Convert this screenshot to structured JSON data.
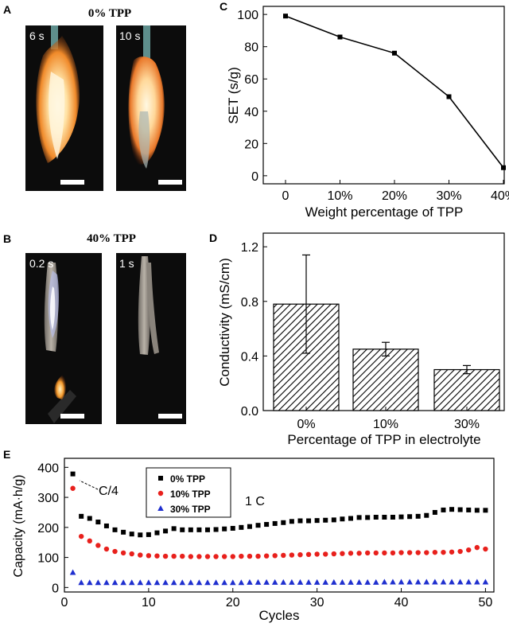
{
  "panel_labels": {
    "a": "A",
    "b": "B",
    "c": "C",
    "d": "D",
    "e": "E"
  },
  "photos": {
    "top_title": "0% TPP",
    "top_left_time": "6 s",
    "top_right_time": "10 s",
    "bottom_title": "40% TPP",
    "bottom_left_time": "0.2 s",
    "bottom_right_time": "1 s"
  },
  "colors": {
    "black_series": "#000000",
    "red_series": "#e8201c",
    "blue_series": "#1f2fcf",
    "photo_bg": "#0c0c0c"
  },
  "chart_data": [
    {
      "id": "C",
      "type": "line",
      "categories": [
        "0",
        "10%",
        "20%",
        "30%",
        "40%"
      ],
      "values": [
        99,
        86,
        76,
        49,
        5
      ],
      "ylabel": "SET (s/g)",
      "xlabel": "Weight percentage of TPP",
      "ylim": [
        -5,
        105
      ],
      "yticks": [
        0,
        20,
        40,
        60,
        80,
        100
      ]
    },
    {
      "id": "D",
      "type": "bar",
      "categories": [
        "0%",
        "10%",
        "30%"
      ],
      "values": [
        0.78,
        0.45,
        0.3
      ],
      "errors": [
        0.36,
        0.05,
        0.03
      ],
      "ylabel": "Conductivity (mS/cm)",
      "xlabel": "Percentage of TPP in electrolyte",
      "ylim": [
        0,
        1.3
      ],
      "yticks": [
        "0.0",
        "0.4",
        "0.8",
        "1.2"
      ]
    },
    {
      "id": "E",
      "type": "scatter",
      "xlabel": "Cycles",
      "ylabel": "Capacity (mA·h/g)",
      "xlim": [
        0,
        51
      ],
      "ylim": [
        -15,
        430
      ],
      "xticks": [
        0,
        10,
        20,
        30,
        40,
        50
      ],
      "yticks": [
        0,
        100,
        200,
        300,
        400
      ],
      "annotations": {
        "c4": "C/4",
        "one_c": "1 C"
      },
      "series": [
        {
          "name": "0% TPP",
          "marker": "square",
          "color": "#000000",
          "x": [
            1,
            2,
            3,
            4,
            5,
            6,
            7,
            8,
            9,
            10,
            11,
            12,
            13,
            14,
            15,
            16,
            17,
            18,
            19,
            20,
            21,
            22,
            23,
            24,
            25,
            26,
            27,
            28,
            29,
            30,
            31,
            32,
            33,
            34,
            35,
            36,
            37,
            38,
            39,
            40,
            41,
            42,
            43,
            44,
            45,
            46,
            47,
            48,
            49,
            50
          ],
          "y": [
            378,
            237,
            230,
            218,
            205,
            192,
            184,
            178,
            175,
            176,
            182,
            188,
            196,
            192,
            192,
            192,
            192,
            193,
            195,
            197,
            200,
            203,
            207,
            210,
            213,
            216,
            220,
            222,
            222,
            223,
            224,
            225,
            228,
            230,
            233,
            233,
            234,
            234,
            234,
            235,
            236,
            237,
            240,
            250,
            258,
            260,
            259,
            258,
            257,
            257
          ]
        },
        {
          "name": "10% TPP",
          "marker": "circle",
          "color": "#e8201c",
          "x": [
            1,
            2,
            3,
            4,
            5,
            6,
            7,
            8,
            9,
            10,
            11,
            12,
            13,
            14,
            15,
            16,
            17,
            18,
            19,
            20,
            21,
            22,
            23,
            24,
            25,
            26,
            27,
            28,
            29,
            30,
            31,
            32,
            33,
            34,
            35,
            36,
            37,
            38,
            39,
            40,
            41,
            42,
            43,
            44,
            45,
            46,
            47,
            48,
            49,
            50
          ],
          "y": [
            330,
            170,
            155,
            140,
            128,
            120,
            115,
            112,
            108,
            106,
            105,
            104,
            104,
            104,
            103,
            103,
            103,
            103,
            103,
            103,
            104,
            104,
            104,
            105,
            106,
            107,
            108,
            109,
            110,
            111,
            111,
            112,
            113,
            114,
            114,
            115,
            115,
            115,
            115,
            116,
            116,
            116,
            116,
            117,
            117,
            118,
            120,
            125,
            133,
            128
          ]
        },
        {
          "name": "30% TPP",
          "marker": "triangle",
          "color": "#1f2fcf",
          "x": [
            1,
            2,
            3,
            4,
            5,
            6,
            7,
            8,
            9,
            10,
            11,
            12,
            13,
            14,
            15,
            16,
            17,
            18,
            19,
            20,
            21,
            22,
            23,
            24,
            25,
            26,
            27,
            28,
            29,
            30,
            31,
            32,
            33,
            34,
            35,
            36,
            37,
            38,
            39,
            40,
            41,
            42,
            43,
            44,
            45,
            46,
            47,
            48,
            49,
            50
          ],
          "y": [
            50,
            16,
            16,
            16,
            16,
            16,
            16,
            16,
            16,
            16,
            16,
            16,
            16,
            16,
            16,
            16,
            16,
            16,
            16,
            16,
            16,
            17,
            17,
            17,
            17,
            17,
            17,
            17,
            17,
            17,
            17,
            17,
            17,
            17,
            17,
            17,
            17,
            18,
            18,
            18,
            18,
            18,
            18,
            18,
            18,
            18,
            18,
            18,
            18,
            18
          ]
        }
      ]
    }
  ]
}
